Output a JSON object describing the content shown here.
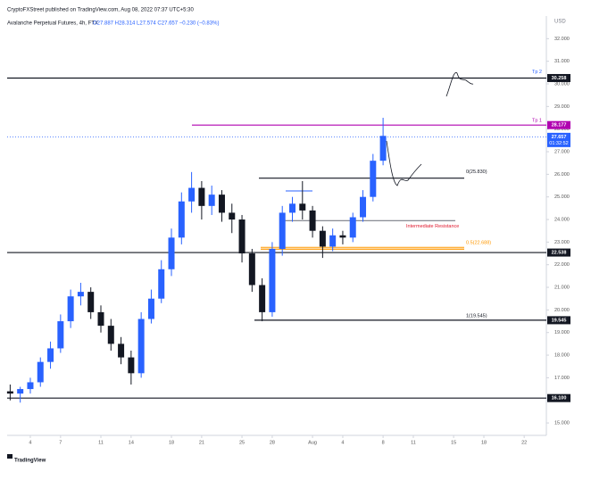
{
  "header": {
    "publisher": "CryptoFXStreet published on TradingView.com, Aug 08, 2022 07:37 UTC+5:30",
    "symbol": "Avalanche Perpetual Futures, 4h, FTX",
    "ohlc": "O27.887 H28.314 L27.574 C27.657 −0.230 (−0.83%)"
  },
  "footer": {
    "logo": "TradingView"
  },
  "chart_data": {
    "type": "candlestick",
    "currency": "USD",
    "x": [
      2,
      3,
      4,
      5,
      6,
      7,
      8,
      9,
      10,
      11,
      12,
      13,
      14,
      15,
      16,
      17,
      18,
      19,
      20,
      21,
      22,
      23,
      24,
      25,
      26,
      27,
      28,
      29,
      30,
      31,
      32,
      33,
      34,
      35,
      36,
      37,
      38,
      39
    ],
    "open": [
      16.4,
      16.3,
      16.5,
      16.8,
      17.7,
      18.3,
      19.5,
      20.6,
      20.8,
      19.9,
      19.3,
      18.5,
      17.9,
      17.2,
      19.6,
      20.5,
      21.8,
      23.2,
      24.8,
      25.4,
      24.6,
      25.1,
      24.3,
      24.0,
      22.5,
      21.1,
      19.9,
      22.7,
      24.3,
      24.7,
      24.4,
      23.5,
      22.8,
      23.3,
      23.2,
      24.1,
      25.0,
      26.6
    ],
    "high": [
      16.7,
      16.6,
      17.0,
      17.9,
      18.6,
      19.8,
      20.9,
      21.2,
      21.0,
      20.2,
      19.6,
      18.8,
      18.2,
      19.9,
      20.9,
      22.2,
      23.6,
      25.2,
      26.1,
      25.7,
      25.5,
      25.3,
      24.7,
      24.2,
      22.7,
      21.4,
      23.0,
      24.6,
      25.0,
      25.7,
      24.6,
      23.7,
      23.6,
      23.5,
      24.3,
      25.3,
      26.9,
      28.5
    ],
    "low": [
      16.0,
      15.9,
      16.3,
      16.6,
      17.4,
      18.1,
      19.2,
      20.2,
      19.6,
      19.0,
      18.2,
      17.6,
      16.7,
      17.0,
      19.4,
      20.3,
      21.5,
      22.9,
      24.3,
      24.0,
      24.2,
      23.9,
      23.4,
      22.1,
      20.8,
      19.5,
      19.7,
      22.4,
      23.9,
      24.0,
      23.2,
      22.3,
      22.6,
      22.9,
      23.0,
      23.9,
      24.8,
      26.4
    ],
    "close": [
      16.3,
      16.5,
      16.8,
      17.7,
      18.3,
      19.5,
      20.6,
      20.8,
      19.9,
      19.3,
      18.5,
      17.9,
      17.2,
      19.6,
      20.5,
      21.8,
      23.2,
      24.8,
      25.4,
      24.6,
      25.1,
      24.3,
      24.0,
      22.5,
      21.1,
      19.9,
      22.7,
      24.3,
      24.7,
      24.4,
      23.5,
      22.8,
      23.3,
      23.2,
      24.1,
      25.0,
      26.6,
      27.7
    ],
    "up_color": "#2962ff",
    "down_color": "#131722",
    "xlim": [
      1.7,
      55.2
    ],
    "xticks": [
      4,
      7,
      11,
      14,
      18,
      21,
      25,
      28,
      {
        "value": 32,
        "label": "Aug"
      },
      {
        "value": 35,
        "label": "4"
      },
      {
        "value": 39,
        "label": "8"
      },
      {
        "value": 42,
        "label": "11"
      },
      {
        "value": 46,
        "label": "15"
      },
      {
        "value": 49,
        "label": "18"
      },
      {
        "value": 53,
        "label": "22"
      }
    ],
    "ylim": [
      14.45,
      33
    ],
    "yticks": [
      {
        "value": 15,
        "label": "15.000"
      },
      {
        "value": 16,
        "label": "16.000"
      },
      {
        "value": 17,
        "label": "17.000"
      },
      {
        "value": 18,
        "label": "18.000"
      },
      {
        "value": 19,
        "label": "19.000"
      },
      {
        "value": 20,
        "label": "20.000"
      },
      {
        "value": 21,
        "label": "21.000"
      },
      {
        "value": 22,
        "label": "22.000"
      },
      {
        "value": 23,
        "label": "23.000"
      },
      {
        "value": 24,
        "label": "24.000"
      },
      {
        "value": 25,
        "label": "25.000"
      },
      {
        "value": 26,
        "label": "26.000"
      },
      {
        "value": 27,
        "label": "27.000"
      },
      {
        "value": 28,
        "label": "28.000"
      },
      {
        "value": 29,
        "label": "29.000"
      },
      {
        "value": 30,
        "label": "30.000"
      },
      {
        "value": 31,
        "label": "31.000"
      },
      {
        "value": 32,
        "label": "32.000"
      }
    ],
    "grid": false,
    "levels": [
      {
        "value": 30.258,
        "color": "#131722",
        "tag": "30.258",
        "note": "Tp 2",
        "note_color": "#2962ff"
      },
      {
        "value": 28.177,
        "color": "#b000b0",
        "tag": "28.177",
        "note": "Tp 1",
        "note_color": "#b000b0"
      },
      {
        "value": 27.657,
        "color": "#2962ff",
        "tag": "27.657",
        "countdown": "01:32:52"
      },
      {
        "value": 25.83,
        "color": "#131722",
        "note": "0(25.830)",
        "note_color": "#131722"
      },
      {
        "value": 23.95,
        "color": "#787b86",
        "note": "Intermediate Resistance",
        "note_color": "#e0182d"
      },
      {
        "value": 22.688,
        "color": "#ff9800",
        "note": "0.5(22.688)",
        "note_color": "#ff9800"
      },
      {
        "value": 22.538,
        "color": "#131722",
        "tag": "22.538"
      },
      {
        "value": 19.545,
        "color": "#131722",
        "tag": "19.545",
        "note": "1(19.545)",
        "note_color": "#131722"
      },
      {
        "value": 16.1,
        "color": "#131722",
        "tag": "16.100"
      }
    ]
  }
}
